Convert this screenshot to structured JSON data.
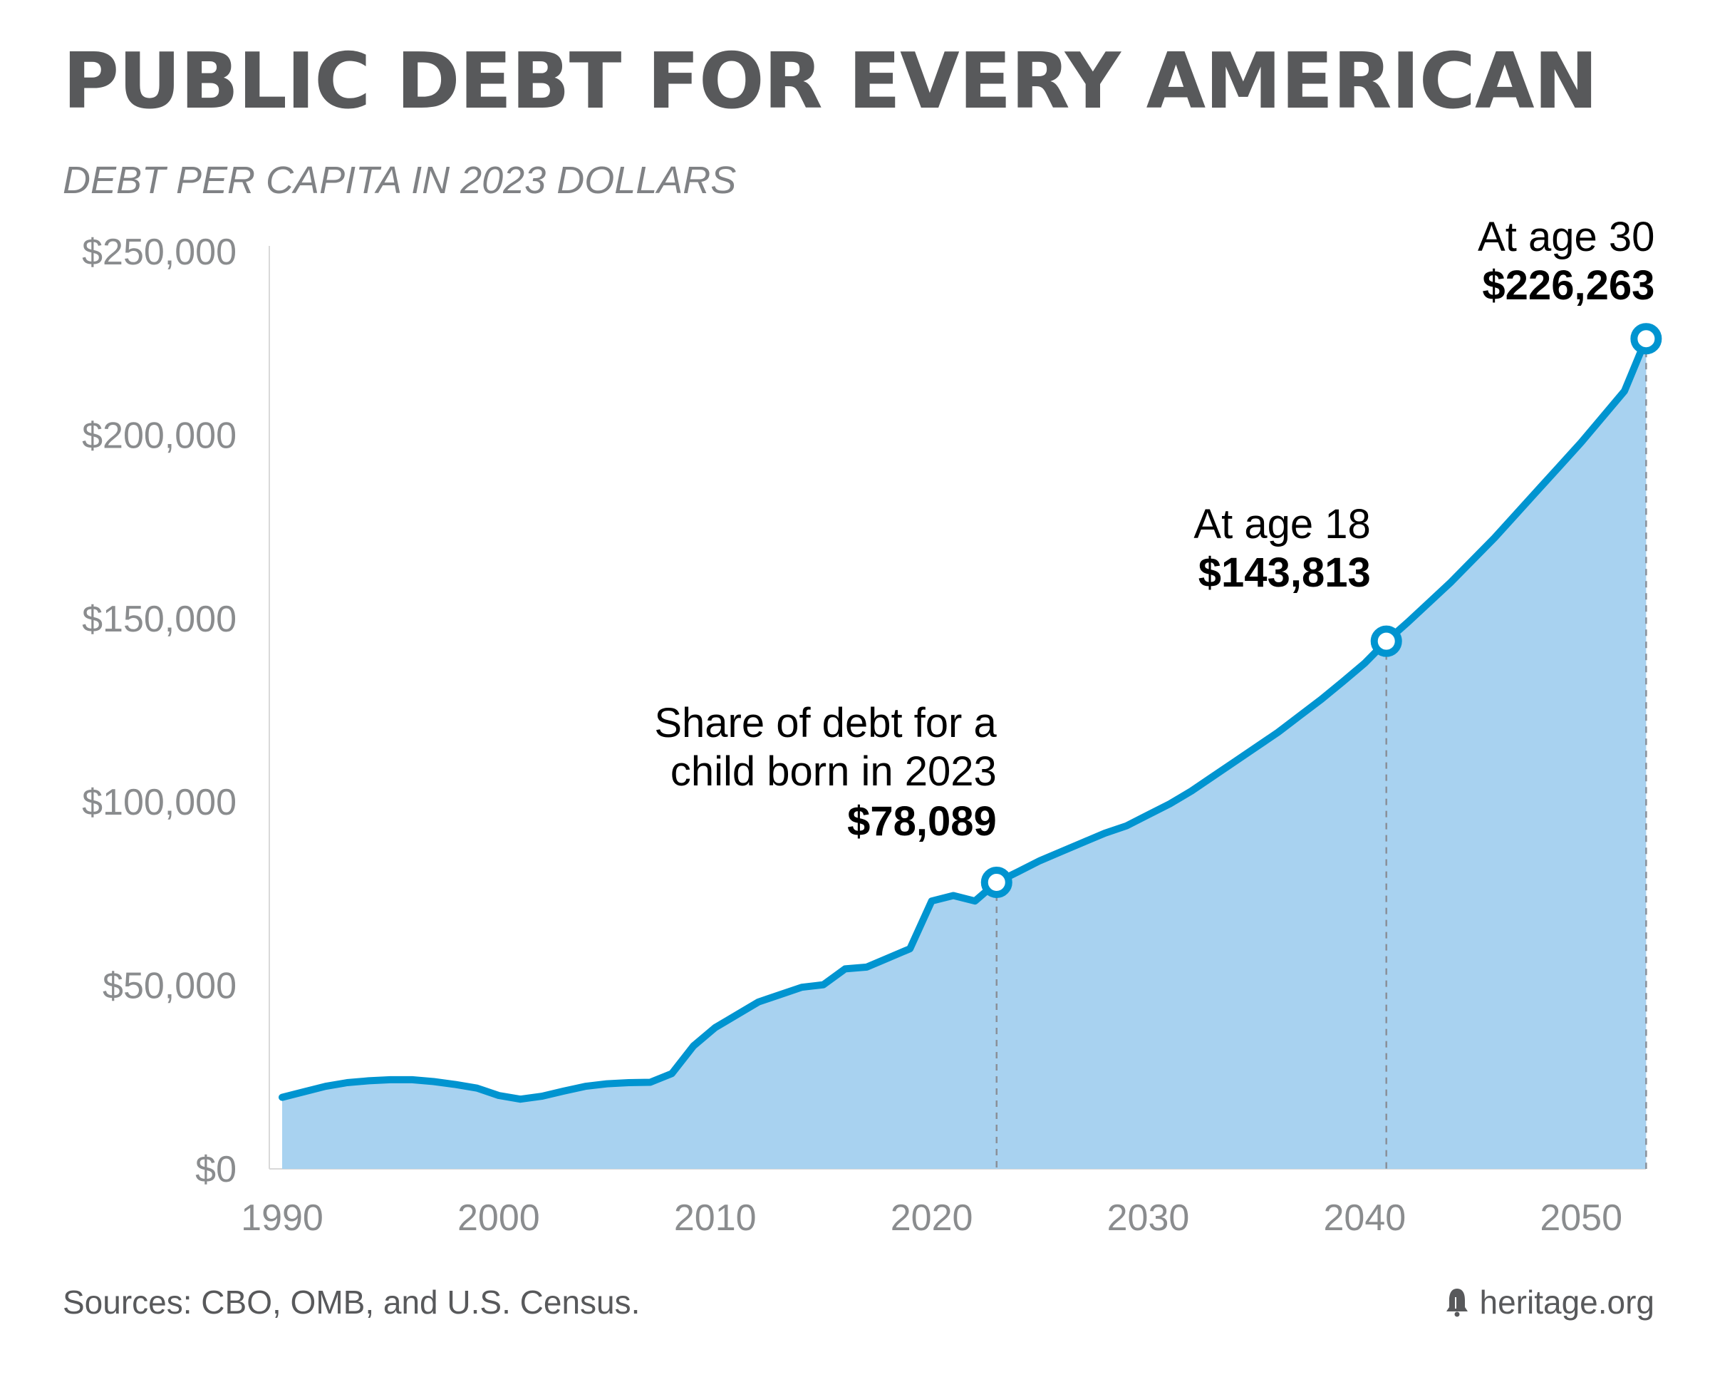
{
  "chart_data": {
    "type": "area",
    "title": "PUBLIC DEBT FOR EVERY AMERICAN",
    "subtitle": "DEBT PER CAPITA IN 2023 DOLLARS",
    "xlabel": "",
    "ylabel": "",
    "xlim": [
      1990,
      2053
    ],
    "ylim": [
      0,
      250000
    ],
    "x_ticks": [
      1990,
      2000,
      2010,
      2020,
      2030,
      2040,
      2050
    ],
    "y_ticks": [
      0,
      50000,
      100000,
      150000,
      200000,
      250000
    ],
    "y_tick_labels": [
      "$0",
      "$50,000",
      "$100,000",
      "$150,000",
      "$200,000",
      "$250,000"
    ],
    "grid": false,
    "colors": {
      "line": "#0094d0",
      "fill": "#a8d2f0",
      "guide": "#8a9099",
      "text": "#000000",
      "axis_text": "#8a8c8e"
    },
    "series": [
      {
        "x": [
          1990,
          1991,
          1992,
          1993,
          1994,
          1995,
          1996,
          1997,
          1998,
          1999,
          2000,
          2001,
          2002,
          2003,
          2004,
          2005,
          2006,
          2007,
          2008,
          2009,
          2010,
          2011,
          2012,
          2013,
          2014,
          2015,
          2016,
          2017,
          2018,
          2019,
          2020,
          2021,
          2022,
          2023,
          2024,
          2025,
          2026,
          2027,
          2028,
          2029,
          2030,
          2031,
          2032,
          2033,
          2034,
          2035,
          2036,
          2037,
          2038,
          2039,
          2040,
          2041,
          2042,
          2043,
          2044,
          2045,
          2046,
          2047,
          2048,
          2049,
          2050,
          2051,
          2052,
          2053
        ],
        "values": [
          19500,
          21000,
          22500,
          23500,
          24000,
          24300,
          24300,
          23800,
          23000,
          22000,
          20000,
          19000,
          19800,
          21200,
          22500,
          23200,
          23500,
          23600,
          26000,
          33500,
          38500,
          42000,
          45500,
          47500,
          49500,
          50200,
          54500,
          55000,
          57500,
          60000,
          73000,
          74500,
          73000,
          78089,
          81000,
          84000,
          86500,
          89000,
          91500,
          93500,
          96500,
          99500,
          103000,
          107000,
          111000,
          115000,
          119000,
          123500,
          128000,
          132800,
          137800,
          143813,
          149000,
          154500,
          160000,
          166000,
          172000,
          178500,
          185000,
          191500,
          198000,
          205000,
          212000,
          226263
        ]
      }
    ],
    "annotations": [
      {
        "year": 2023,
        "value": 78089,
        "line1": "Share of debt for a",
        "line2": "child born in 2023",
        "amount": "$78,089"
      },
      {
        "year": 2041,
        "value": 143813,
        "line1": "At age 18",
        "line2": "",
        "amount": "$143,813"
      },
      {
        "year": 2053,
        "value": 226263,
        "line1": "At age 30",
        "line2": "",
        "amount": "$226,263"
      }
    ]
  },
  "footer": {
    "sources": "Sources: CBO, OMB, and U.S. Census.",
    "brand": "heritage.org"
  }
}
